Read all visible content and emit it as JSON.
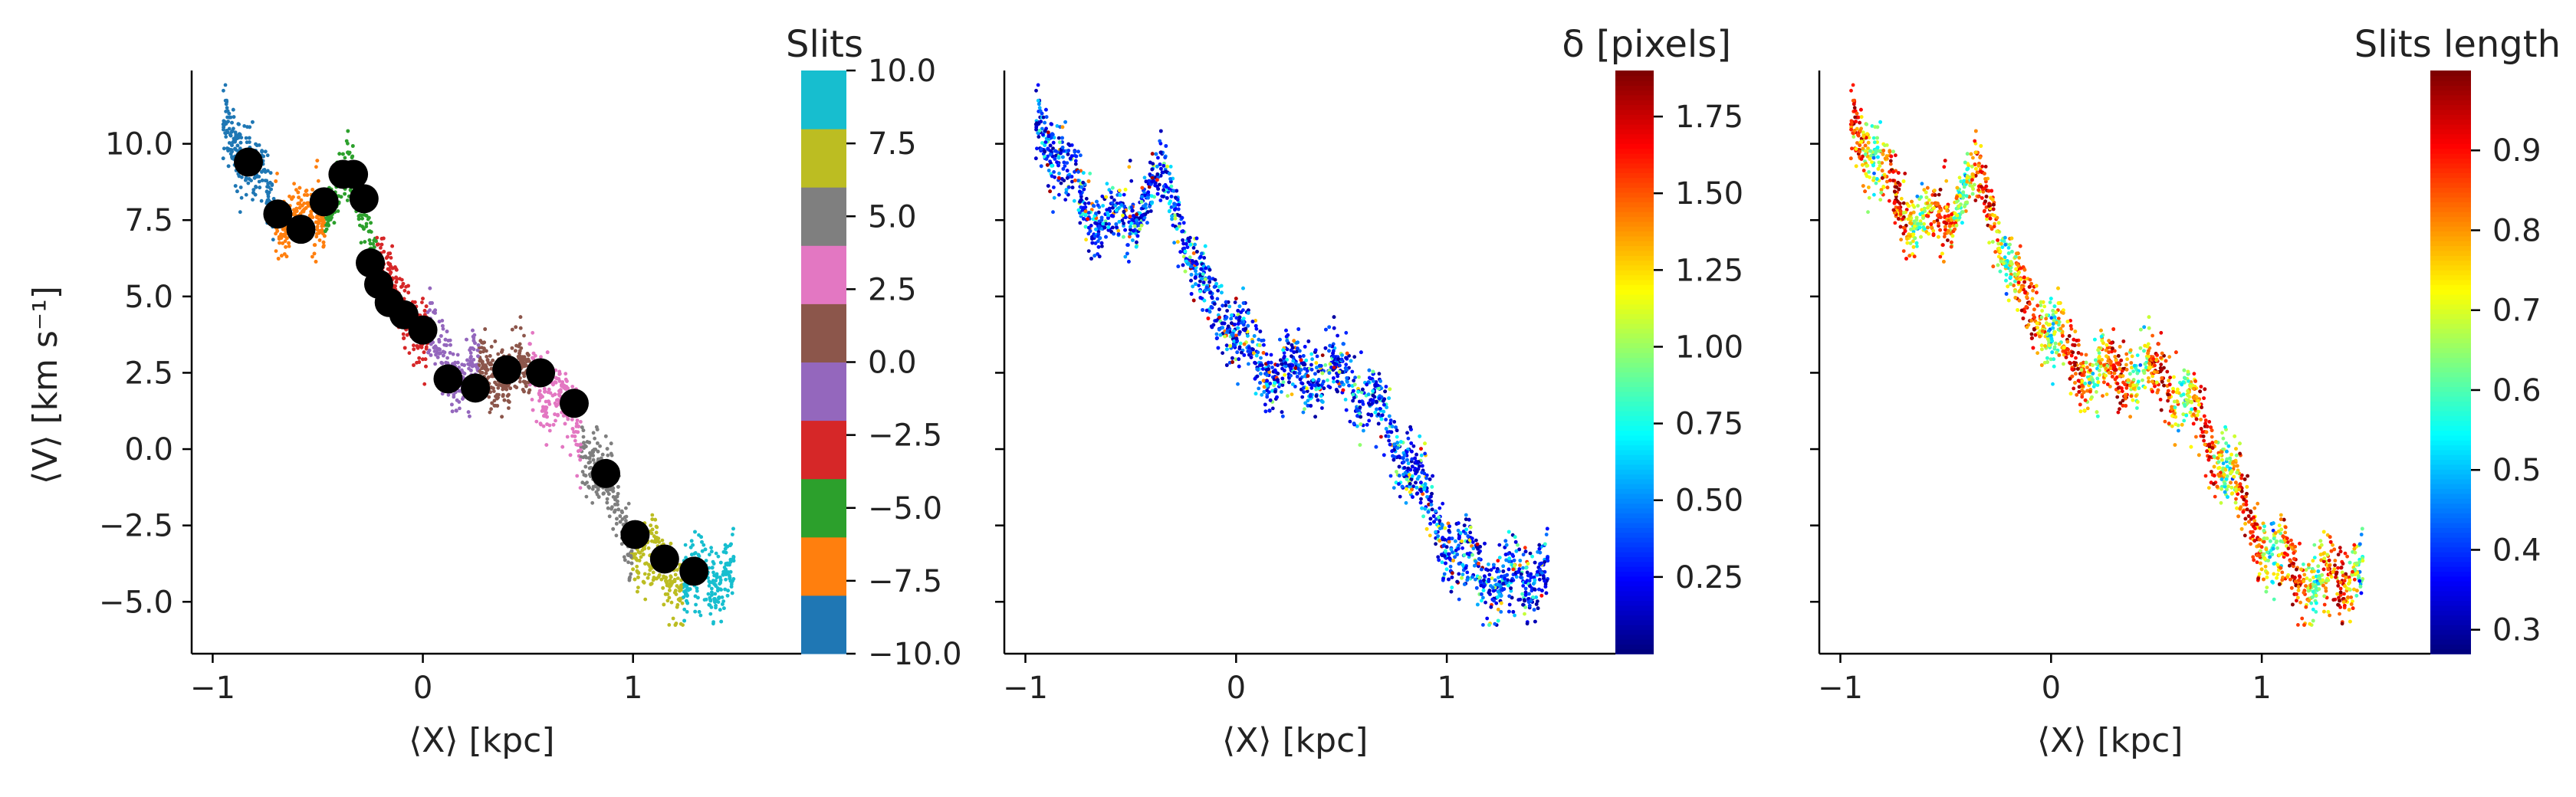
{
  "colors": {
    "tab10": [
      "#1f77b4",
      "#ff7f0e",
      "#2ca02c",
      "#d62728",
      "#9467bd",
      "#8c564b",
      "#e377c2",
      "#7f7f7f",
      "#bcbd22",
      "#17becf"
    ],
    "jet_colormap": [
      "#00007f",
      "#0000ff",
      "#007fff",
      "#00ffff",
      "#7fff7f",
      "#ffff00",
      "#ff7f00",
      "#ff0000",
      "#7f0000"
    ],
    "centroid_marker": "#000000"
  },
  "chart_data": [
    {
      "type": "scatter",
      "xlabel": "⟨X⟩ [kpc]",
      "ylabel": "⟨V⟩ [km s⁻¹]",
      "xlim": [
        -1.1,
        1.8
      ],
      "ylim": [
        -6.7,
        12.4
      ],
      "xticks": [
        -1,
        0,
        1
      ],
      "xtick_labels": [
        "−1",
        "0",
        "1"
      ],
      "yticks": [
        -5.0,
        -2.5,
        0.0,
        2.5,
        5.0,
        7.5,
        10.0
      ],
      "ytick_labels": [
        "−5.0",
        "−2.5",
        "0.0",
        "2.5",
        "5.0",
        "7.5",
        "10.0"
      ],
      "colorbar": {
        "title": "Slits",
        "type": "discrete",
        "range": [
          -10.0,
          10.0
        ],
        "ticks": [
          -10.0,
          -7.5,
          -5.0,
          -2.5,
          0.0,
          2.5,
          5.0,
          7.5,
          10.0
        ],
        "tick_labels": [
          "−10.0",
          "−7.5",
          "−5.0",
          "−2.5",
          "0.0",
          "2.5",
          "5.0",
          "7.5",
          "10.0"
        ]
      },
      "centroids": {
        "x": [
          -0.83,
          -0.69,
          -0.58,
          -0.47,
          -0.38,
          -0.33,
          -0.28,
          -0.25,
          -0.21,
          -0.16,
          -0.09,
          0.0,
          0.12,
          0.25,
          0.4,
          0.56,
          0.72,
          0.87,
          1.01,
          1.15,
          1.29
        ],
        "y": [
          9.4,
          7.7,
          7.2,
          8.1,
          9.0,
          9.0,
          8.2,
          6.1,
          5.4,
          4.8,
          4.4,
          3.9,
          2.3,
          2.0,
          2.6,
          2.5,
          1.5,
          -0.8,
          -2.8,
          -3.6,
          -4.0
        ]
      },
      "point_cloud": {
        "description_free": true,
        "anchors_x": [
          -0.93,
          -0.8,
          -0.68,
          -0.56,
          -0.46,
          -0.36,
          -0.28,
          -0.2,
          -0.13,
          -0.03,
          0.08,
          0.2,
          0.32,
          0.44,
          0.56,
          0.68,
          0.8,
          0.9,
          1.02,
          1.16,
          1.32,
          1.46
        ],
        "anchors_y": [
          10.8,
          9.0,
          7.6,
          7.4,
          8.0,
          8.9,
          8.0,
          5.8,
          4.8,
          4.2,
          2.9,
          2.4,
          2.6,
          2.5,
          2.2,
          1.2,
          -0.2,
          -1.6,
          -3.2,
          -4.0,
          -4.6,
          -3.8
        ]
      }
    },
    {
      "type": "scatter",
      "xlabel": "⟨X⟩ [kpc]",
      "xlim": [
        -1.1,
        1.8
      ],
      "ylim": [
        -6.7,
        12.4
      ],
      "xticks": [
        -1,
        0,
        1
      ],
      "xtick_labels": [
        "−1",
        "0",
        "1"
      ],
      "yticks": [
        -5.0,
        -2.5,
        0.0,
        2.5,
        5.0,
        7.5,
        10.0
      ],
      "colorbar": {
        "title": "δ [pixels]",
        "type": "continuous",
        "colormap": "jet",
        "range": [
          0.0,
          1.9
        ],
        "ticks": [
          0.25,
          0.5,
          0.75,
          1.0,
          1.25,
          1.5,
          1.75
        ],
        "tick_labels": [
          "0.25",
          "0.50",
          "0.75",
          "1.00",
          "1.25",
          "1.50",
          "1.75"
        ]
      }
    },
    {
      "type": "scatter",
      "xlabel": "⟨X⟩ [kpc]",
      "xlim": [
        -1.1,
        1.8
      ],
      "ylim": [
        -6.7,
        12.4
      ],
      "xticks": [
        -1,
        0,
        1
      ],
      "xtick_labels": [
        "−1",
        "0",
        "1"
      ],
      "yticks": [
        -5.0,
        -2.5,
        0.0,
        2.5,
        5.0,
        7.5,
        10.0
      ],
      "colorbar": {
        "title": "Slits length",
        "type": "continuous",
        "colormap": "jet",
        "range": [
          0.27,
          1.0
        ],
        "ticks": [
          0.3,
          0.4,
          0.5,
          0.6,
          0.7,
          0.8,
          0.9
        ],
        "tick_labels": [
          "0.3",
          "0.4",
          "0.5",
          "0.6",
          "0.7",
          "0.8",
          "0.9"
        ]
      }
    }
  ]
}
